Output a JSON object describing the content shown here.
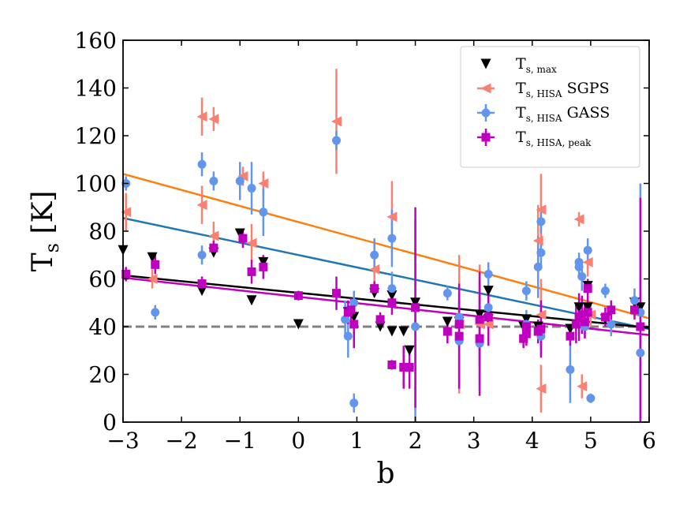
{
  "chart_data": {
    "type": "scatter",
    "title": "",
    "xlabel": "b",
    "ylabel": "T",
    "ylabel_sub": "s",
    "ylabel_unit": " [K]",
    "xlim": [
      -3,
      6
    ],
    "ylim": [
      0,
      160
    ],
    "xticks": [
      -3,
      -2,
      -1,
      0,
      1,
      2,
      3,
      4,
      5,
      6
    ],
    "yticks": [
      0,
      20,
      40,
      60,
      80,
      100,
      120,
      140,
      160
    ],
    "xtick_labels": [
      "−3",
      "−2",
      "−1",
      "0",
      "1",
      "2",
      "3",
      "4",
      "5",
      "6"
    ],
    "ytick_labels": [
      "0",
      "20",
      "40",
      "60",
      "80",
      "100",
      "120",
      "140",
      "160"
    ],
    "legend_position": "top-right",
    "reference_line": {
      "y": 40,
      "color": "#808080",
      "style": "dashed"
    },
    "series": [
      {
        "name": "T_s,max",
        "legend_main": "T",
        "legend_sub": "s, max",
        "legend_suffix": "",
        "marker": "triangle-down",
        "color": "#000000",
        "fit": {
          "x0": -3,
          "y0": 61.5,
          "x1": 6,
          "y1": 39.5,
          "color": "#000000"
        },
        "points": [
          {
            "x": -3.0,
            "y": 72
          },
          {
            "x": -2.5,
            "y": 69
          },
          {
            "x": -1.65,
            "y": 55
          },
          {
            "x": -1.45,
            "y": 71
          },
          {
            "x": -1.0,
            "y": 79
          },
          {
            "x": -0.8,
            "y": 51
          },
          {
            "x": -0.6,
            "y": 67
          },
          {
            "x": 0.0,
            "y": 41
          },
          {
            "x": 0.85,
            "y": 46
          },
          {
            "x": 0.95,
            "y": 44
          },
          {
            "x": 1.3,
            "y": 54
          },
          {
            "x": 1.4,
            "y": 40
          },
          {
            "x": 1.6,
            "y": 38
          },
          {
            "x": 1.6,
            "y": 53
          },
          {
            "x": 1.8,
            "y": 38
          },
          {
            "x": 1.9,
            "y": 30
          },
          {
            "x": 2.0,
            "y": 50
          },
          {
            "x": 2.55,
            "y": 42
          },
          {
            "x": 2.75,
            "y": 42
          },
          {
            "x": 3.1,
            "y": 45
          },
          {
            "x": 3.25,
            "y": 43
          },
          {
            "x": 3.25,
            "y": 55
          },
          {
            "x": 3.85,
            "y": 40
          },
          {
            "x": 3.9,
            "y": 43
          },
          {
            "x": 4.1,
            "y": 40
          },
          {
            "x": 4.65,
            "y": 39
          },
          {
            "x": 4.8,
            "y": 48
          },
          {
            "x": 4.95,
            "y": 48
          },
          {
            "x": 4.95,
            "y": 57
          },
          {
            "x": 5.25,
            "y": 43
          },
          {
            "x": 5.75,
            "y": 50
          },
          {
            "x": 5.85,
            "y": 48
          }
        ]
      },
      {
        "name": "T_s,HISA SGPS",
        "legend_main": "T",
        "legend_sub": "s, HISA",
        "legend_suffix": " SGPS",
        "marker": "triangle-left",
        "color": "#fa8072",
        "fit": {
          "x0": -3,
          "y0": 104,
          "x1": 6,
          "y1": 43.5,
          "color": "#ff7f0e"
        },
        "points": [
          {
            "x": -2.95,
            "y": 88,
            "err": 8
          },
          {
            "x": -2.5,
            "y": 60,
            "err": 4
          },
          {
            "x": -1.65,
            "y": 128,
            "err": 8
          },
          {
            "x": -1.65,
            "y": 91,
            "err": 8
          },
          {
            "x": -1.45,
            "y": 127,
            "err": 5
          },
          {
            "x": -1.45,
            "y": 78,
            "err": 6
          },
          {
            "x": -0.95,
            "y": 103,
            "err": 4
          },
          {
            "x": -0.8,
            "y": 75,
            "err": 8
          },
          {
            "x": -0.6,
            "y": 100,
            "err": 5
          },
          {
            "x": 0.65,
            "y": 126,
            "err": 22
          },
          {
            "x": 1.3,
            "y": 64,
            "err": 8
          },
          {
            "x": 1.6,
            "y": 86,
            "err": 15
          },
          {
            "x": 2.75,
            "y": 41,
            "err": 29
          },
          {
            "x": 3.1,
            "y": 41,
            "err": 25
          },
          {
            "x": 3.25,
            "y": 41,
            "err": 8
          },
          {
            "x": 4.1,
            "y": 76,
            "err": 15
          },
          {
            "x": 4.15,
            "y": 89,
            "err": 15
          },
          {
            "x": 4.15,
            "y": 45,
            "err": 15
          },
          {
            "x": 4.15,
            "y": 14,
            "err": 10
          },
          {
            "x": 4.8,
            "y": 85,
            "err": 3
          },
          {
            "x": 4.85,
            "y": 15,
            "err": 5
          },
          {
            "x": 4.95,
            "y": 67,
            "err": 6
          },
          {
            "x": 5.0,
            "y": 45,
            "err": 5
          }
        ]
      },
      {
        "name": "T_s,HISA GASS",
        "legend_main": "T",
        "legend_sub": "s, HISA",
        "legend_suffix": " GASS",
        "marker": "circle",
        "color": "#6495ed",
        "fit": {
          "x0": -3,
          "y0": 85.5,
          "x1": 6,
          "y1": 39,
          "color": "#1f77b4"
        },
        "points": [
          {
            "x": -2.95,
            "y": 100,
            "err": 3
          },
          {
            "x": -2.45,
            "y": 46,
            "err": 3
          },
          {
            "x": -1.65,
            "y": 108,
            "err": 5
          },
          {
            "x": -1.65,
            "y": 70,
            "err": 4
          },
          {
            "x": -1.45,
            "y": 101,
            "err": 4
          },
          {
            "x": -1.0,
            "y": 101,
            "err": 8
          },
          {
            "x": -0.8,
            "y": 98,
            "err": 11
          },
          {
            "x": -0.6,
            "y": 88,
            "err": 10
          },
          {
            "x": 0.65,
            "y": 118,
            "err": 4
          },
          {
            "x": 0.8,
            "y": 43,
            "err": 8
          },
          {
            "x": 0.85,
            "y": 36,
            "err": 9
          },
          {
            "x": 0.95,
            "y": 8,
            "err": 4
          },
          {
            "x": 0.95,
            "y": 50,
            "err": 5
          },
          {
            "x": 1.3,
            "y": 70,
            "err": 7
          },
          {
            "x": 1.6,
            "y": 77,
            "err": 12
          },
          {
            "x": 1.6,
            "y": 56,
            "err": 7
          },
          {
            "x": 2.0,
            "y": 40,
            "err": 45
          },
          {
            "x": 2.55,
            "y": 54,
            "err": 3
          },
          {
            "x": 2.75,
            "y": 34,
            "err": 20
          },
          {
            "x": 2.75,
            "y": 44,
            "err": 6
          },
          {
            "x": 3.1,
            "y": 33,
            "err": 20
          },
          {
            "x": 3.25,
            "y": 62,
            "err": 5
          },
          {
            "x": 3.25,
            "y": 48,
            "err": 4
          },
          {
            "x": 3.9,
            "y": 55,
            "err": 4
          },
          {
            "x": 3.9,
            "y": 41,
            "err": 6
          },
          {
            "x": 4.1,
            "y": 65,
            "err": 13
          },
          {
            "x": 4.15,
            "y": 84,
            "err": 5
          },
          {
            "x": 4.15,
            "y": 71,
            "err": 6
          },
          {
            "x": 4.15,
            "y": 36,
            "err": 6
          },
          {
            "x": 4.65,
            "y": 22,
            "err": 14
          },
          {
            "x": 4.8,
            "y": 67,
            "err": 4
          },
          {
            "x": 4.8,
            "y": 65,
            "err": 4
          },
          {
            "x": 4.85,
            "y": 61,
            "err": 6
          },
          {
            "x": 4.9,
            "y": 40,
            "err": 4
          },
          {
            "x": 4.95,
            "y": 72,
            "err": 5
          },
          {
            "x": 5.0,
            "y": 10,
            "err": 2
          },
          {
            "x": 5.25,
            "y": 55,
            "err": 3
          },
          {
            "x": 5.35,
            "y": 41,
            "err": 5
          },
          {
            "x": 5.75,
            "y": 51,
            "err": 5
          },
          {
            "x": 5.85,
            "y": 29,
            "err": 10
          },
          {
            "x": 5.85,
            "y": 46,
            "err": 54
          }
        ]
      },
      {
        "name": "T_s,HISA,peak",
        "legend_main": "T",
        "legend_sub": "s, HISA, peak",
        "legend_suffix": "",
        "marker": "square",
        "color": "#bf00bf",
        "fit": {
          "x0": -3,
          "y0": 60.5,
          "x1": 6,
          "y1": 36.5,
          "color": "#bf00bf"
        },
        "points": [
          {
            "x": -2.95,
            "y": 62,
            "err": 3
          },
          {
            "x": -2.45,
            "y": 66,
            "err": 4
          },
          {
            "x": -1.65,
            "y": 58,
            "err": 3
          },
          {
            "x": -1.45,
            "y": 73,
            "err": 3
          },
          {
            "x": -0.95,
            "y": 77,
            "err": 4
          },
          {
            "x": -0.8,
            "y": 63,
            "err": 5
          },
          {
            "x": -0.6,
            "y": 65,
            "err": 5
          },
          {
            "x": 0.0,
            "y": 53,
            "err": 2
          },
          {
            "x": 0.65,
            "y": 54,
            "err": 7
          },
          {
            "x": 0.85,
            "y": 46,
            "err": 5
          },
          {
            "x": 0.9,
            "y": 47,
            "err": 5
          },
          {
            "x": 0.95,
            "y": 41,
            "err": 10
          },
          {
            "x": 1.3,
            "y": 56,
            "err": 3
          },
          {
            "x": 1.4,
            "y": 43,
            "err": 3
          },
          {
            "x": 1.6,
            "y": 50,
            "err": 5
          },
          {
            "x": 1.6,
            "y": 24,
            "err": 2
          },
          {
            "x": 1.8,
            "y": 23,
            "err": 9
          },
          {
            "x": 1.9,
            "y": 23,
            "err": 9
          },
          {
            "x": 2.0,
            "y": 48,
            "err": 42
          },
          {
            "x": 2.55,
            "y": 38,
            "err": 5
          },
          {
            "x": 2.75,
            "y": 36,
            "err": 22
          },
          {
            "x": 2.75,
            "y": 41,
            "err": 10
          },
          {
            "x": 3.1,
            "y": 35,
            "err": 24
          },
          {
            "x": 3.1,
            "y": 43,
            "err": 20
          },
          {
            "x": 3.25,
            "y": 44,
            "err": 12
          },
          {
            "x": 3.85,
            "y": 35,
            "err": 4
          },
          {
            "x": 3.9,
            "y": 37,
            "err": 5
          },
          {
            "x": 3.9,
            "y": 40,
            "err": 4
          },
          {
            "x": 4.1,
            "y": 38,
            "err": 5
          },
          {
            "x": 4.15,
            "y": 39,
            "err": 12
          },
          {
            "x": 4.65,
            "y": 36,
            "err": 4
          },
          {
            "x": 4.75,
            "y": 41,
            "err": 8
          },
          {
            "x": 4.8,
            "y": 44,
            "err": 10
          },
          {
            "x": 4.85,
            "y": 45,
            "err": 8
          },
          {
            "x": 4.9,
            "y": 42,
            "err": 7
          },
          {
            "x": 4.95,
            "y": 46,
            "err": 7
          },
          {
            "x": 4.95,
            "y": 56,
            "err": 4
          },
          {
            "x": 5.25,
            "y": 44,
            "err": 4
          },
          {
            "x": 5.35,
            "y": 47,
            "err": 4
          },
          {
            "x": 5.75,
            "y": 47,
            "err": 4
          },
          {
            "x": 5.85,
            "y": 40,
            "err": 54
          }
        ]
      }
    ]
  }
}
